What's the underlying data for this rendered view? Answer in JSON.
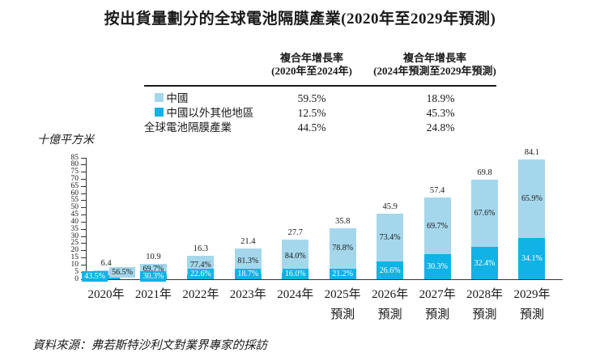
{
  "title": "按出貨量劃分的全球電池隔膜產業(2020年至2029年預測)",
  "table": {
    "headers": [
      {
        "line1": "複合年增長率",
        "line2": "(2020年至2024年)"
      },
      {
        "line1": "複合年增長率",
        "line2": "(2024年預測至2029年預測)"
      }
    ],
    "rows": [
      {
        "legend": "china",
        "label": "中國",
        "cagr_2020_2024": "59.5%",
        "cagr_2024_2029": "18.9%"
      },
      {
        "legend": "ex_china",
        "label": "中國以外其他地區",
        "cagr_2020_2024": "12.5%",
        "cagr_2024_2029": "45.3%"
      },
      {
        "legend": "",
        "label": "全球電池隔膜產業",
        "cagr_2020_2024": "44.5%",
        "cagr_2024_2029": "24.8%"
      }
    ]
  },
  "colors": {
    "china": "#a5d7ec",
    "ex_china": "#11b2e6"
  },
  "chart_data": {
    "type": "bar",
    "stacked": true,
    "title": "按出貨量劃分的全球電池隔膜產業(2020年至2029年預測)",
    "ylabel": "十億平方米",
    "ylim": [
      0,
      85
    ],
    "ytick_step": 5,
    "grid": false,
    "categories": [
      "2020年",
      "2021年",
      "2022年",
      "2023年",
      "2024年",
      "2025年",
      "2026年",
      "2027年",
      "2028年",
      "2029年"
    ],
    "category_sub": [
      "",
      "",
      "",
      "",
      "",
      "預測",
      "預測",
      "預測",
      "預測",
      "預測"
    ],
    "totals": [
      6.4,
      10.9,
      16.3,
      21.4,
      27.7,
      35.8,
      45.9,
      57.4,
      69.8,
      84.1
    ],
    "total_labels": [
      "6.4",
      "10.9",
      "16.3",
      "21.4",
      "27.7",
      "35.8",
      "45.9",
      "57.4",
      "69.8",
      "84.1"
    ],
    "series": [
      {
        "name": "中國以外其他地區",
        "color_key": "ex_china",
        "pct": [
          43.5,
          30.3,
          22.6,
          18.7,
          16.0,
          21.2,
          26.6,
          30.3,
          32.4,
          34.1
        ],
        "labels": [
          "43.5%",
          "30.3%",
          "22.6%",
          "18.7%",
          "16.0%",
          "21.2%",
          "26.6%",
          "30.3%",
          "32.4%",
          "34.1%"
        ],
        "label_dx": [
          -14,
          0,
          0,
          0,
          0,
          0,
          0,
          0,
          0,
          0
        ]
      },
      {
        "name": "中國",
        "color_key": "china",
        "pct": [
          56.5,
          69.7,
          77.4,
          81.3,
          84.0,
          78.8,
          73.4,
          69.7,
          67.6,
          65.9
        ],
        "labels": [
          "56.5%",
          "69.7%",
          "77.4%",
          "81.3%",
          "84.0%",
          "78.8%",
          "73.4%",
          "69.7%",
          "67.6%",
          "65.9%"
        ],
        "label_dx": [
          20,
          0,
          0,
          0,
          0,
          0,
          0,
          0,
          0,
          0
        ]
      }
    ],
    "cagr_table": {
      "china_2020_2024": "59.5%",
      "china_2024_2029": "18.9%",
      "ex_china_2020_2024": "12.5%",
      "ex_china_2024_2029": "45.3%",
      "global_2020_2024": "44.5%",
      "global_2024_2029": "24.8%"
    }
  },
  "source": "資料來源：弗若斯特沙利文對業界專家的採訪"
}
